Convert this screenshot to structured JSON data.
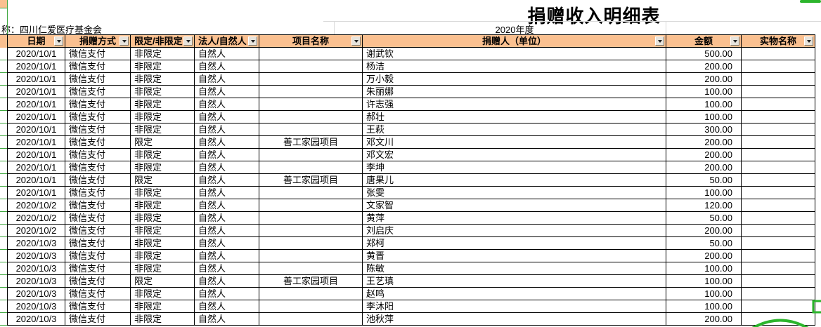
{
  "sheet": {
    "title": "捐赠收入明细表",
    "org_label": "称：四川仁爱医疗基金会",
    "period": "2020年度"
  },
  "colors": {
    "header_bg": "#FAC090",
    "gridline_green": "#3FA73F",
    "annotation_green": "#2CB52C"
  },
  "table": {
    "columns": [
      {
        "key": "date",
        "label": "日期"
      },
      {
        "key": "method",
        "label": "捐赠方式"
      },
      {
        "key": "restriction",
        "label": "限定/非限定"
      },
      {
        "key": "person_type",
        "label": "法人/自然人"
      },
      {
        "key": "project",
        "label": "项目名称"
      },
      {
        "key": "donor",
        "label": "捐赠人（单位）"
      },
      {
        "key": "amount",
        "label": "金额"
      },
      {
        "key": "item",
        "label": "实物名称"
      }
    ],
    "rows": [
      {
        "date": "2020/10/1",
        "method": "微信支付",
        "restriction": "非限定",
        "person_type": "自然人",
        "project": "",
        "donor": "谢武钦",
        "amount": "500.00",
        "item": ""
      },
      {
        "date": "2020/10/1",
        "method": "微信支付",
        "restriction": "非限定",
        "person_type": "自然人",
        "project": "",
        "donor": "杨洁",
        "amount": "200.00",
        "item": ""
      },
      {
        "date": "2020/10/1",
        "method": "微信支付",
        "restriction": "非限定",
        "person_type": "自然人",
        "project": "",
        "donor": "万小毅",
        "amount": "200.00",
        "item": ""
      },
      {
        "date": "2020/10/1",
        "method": "微信支付",
        "restriction": "非限定",
        "person_type": "自然人",
        "project": "",
        "donor": "朱丽娜",
        "amount": "100.00",
        "item": ""
      },
      {
        "date": "2020/10/1",
        "method": "微信支付",
        "restriction": "非限定",
        "person_type": "自然人",
        "project": "",
        "donor": "许志强",
        "amount": "100.00",
        "item": ""
      },
      {
        "date": "2020/10/1",
        "method": "微信支付",
        "restriction": "非限定",
        "person_type": "自然人",
        "project": "",
        "donor": "郝壮",
        "amount": "100.00",
        "item": ""
      },
      {
        "date": "2020/10/1",
        "method": "微信支付",
        "restriction": "非限定",
        "person_type": "自然人",
        "project": "",
        "donor": "王萩",
        "amount": "300.00",
        "item": ""
      },
      {
        "date": "2020/10/1",
        "method": "微信支付",
        "restriction": "限定",
        "person_type": "自然人",
        "project": "善工家园项目",
        "donor": "邓文川",
        "amount": "200.00",
        "item": ""
      },
      {
        "date": "2020/10/1",
        "method": "微信支付",
        "restriction": "非限定",
        "person_type": "自然人",
        "project": "",
        "donor": "邓文宏",
        "amount": "200.00",
        "item": ""
      },
      {
        "date": "2020/10/1",
        "method": "微信支付",
        "restriction": "非限定",
        "person_type": "自然人",
        "project": "",
        "donor": "李坤",
        "amount": "200.00",
        "item": ""
      },
      {
        "date": "2020/10/1",
        "method": "微信支付",
        "restriction": "限定",
        "person_type": "自然人",
        "project": "善工家园项目",
        "donor": "唐果儿",
        "amount": "50.00",
        "item": ""
      },
      {
        "date": "2020/10/1",
        "method": "微信支付",
        "restriction": "非限定",
        "person_type": "自然人",
        "project": "",
        "donor": "张雯",
        "amount": "100.00",
        "item": ""
      },
      {
        "date": "2020/10/2",
        "method": "微信支付",
        "restriction": "非限定",
        "person_type": "自然人",
        "project": "",
        "donor": "文家智",
        "amount": "120.00",
        "item": ""
      },
      {
        "date": "2020/10/2",
        "method": "微信支付",
        "restriction": "非限定",
        "person_type": "自然人",
        "project": "",
        "donor": "黄萍",
        "amount": "50.00",
        "item": ""
      },
      {
        "date": "2020/10/2",
        "method": "微信支付",
        "restriction": "非限定",
        "person_type": "自然人",
        "project": "",
        "donor": "刘启庆",
        "amount": "200.00",
        "item": ""
      },
      {
        "date": "2020/10/3",
        "method": "微信支付",
        "restriction": "非限定",
        "person_type": "自然人",
        "project": "",
        "donor": "郑柯",
        "amount": "50.00",
        "item": ""
      },
      {
        "date": "2020/10/3",
        "method": "微信支付",
        "restriction": "非限定",
        "person_type": "自然人",
        "project": "",
        "donor": "黄晋",
        "amount": "200.00",
        "item": ""
      },
      {
        "date": "2020/10/3",
        "method": "微信支付",
        "restriction": "非限定",
        "person_type": "自然人",
        "project": "",
        "donor": "陈敏",
        "amount": "100.00",
        "item": ""
      },
      {
        "date": "2020/10/3",
        "method": "微信支付",
        "restriction": "限定",
        "person_type": "自然人",
        "project": "善工家园项目",
        "donor": "王艺瑱",
        "amount": "100.00",
        "item": ""
      },
      {
        "date": "2020/10/3",
        "method": "微信支付",
        "restriction": "非限定",
        "person_type": "自然人",
        "project": "",
        "donor": "赵鸣",
        "amount": "100.00",
        "item": ""
      },
      {
        "date": "2020/10/3",
        "method": "微信支付",
        "restriction": "非限定",
        "person_type": "自然人",
        "project": "",
        "donor": "李沐阳",
        "amount": "100.00",
        "item": ""
      },
      {
        "date": "2020/10/3",
        "method": "微信支付",
        "restriction": "非限定",
        "person_type": "自然人",
        "project": "",
        "donor": "池秋萍",
        "amount": "200.00",
        "item": ""
      }
    ]
  }
}
